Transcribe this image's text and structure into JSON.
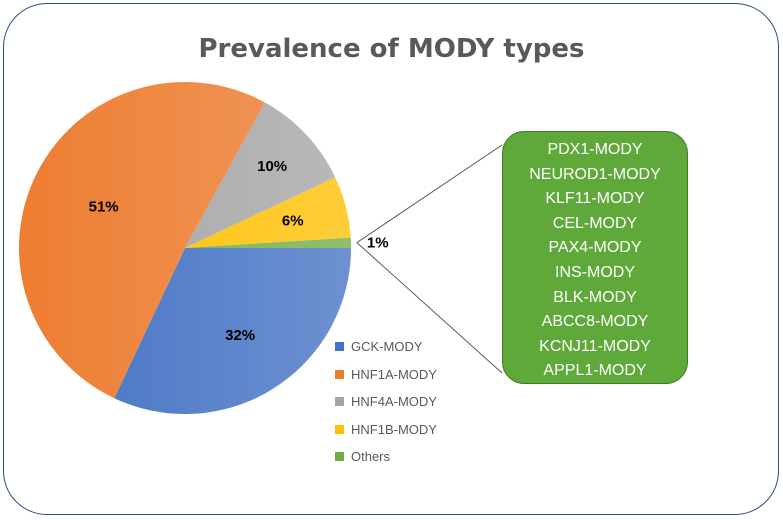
{
  "colors": {
    "GCK-MODY": "#4472c4",
    "HNF1A-MODY": "#ed7d31",
    "HNF4A-MODY": "#a5a5a5",
    "HNF1B-MODY": "#ffc000",
    "Others": "#70ad47"
  },
  "chart_data": {
    "type": "pie",
    "title": "Prevalence of MODY types",
    "slices": [
      {
        "name": "GCK-MODY",
        "value": 32,
        "label": "32%"
      },
      {
        "name": "HNF1A-MODY",
        "value": 51,
        "label": "51%"
      },
      {
        "name": "HNF4A-MODY",
        "value": 10,
        "label": "10%"
      },
      {
        "name": "HNF1B-MODY",
        "value": 6,
        "label": "6%"
      },
      {
        "name": "Others",
        "value": 1,
        "label": "1%"
      }
    ],
    "legend": {
      "placement": "bottom-right",
      "entries": [
        "GCK-MODY",
        "HNF1A-MODY",
        "HNF4A-MODY",
        "HNF1B-MODY",
        "Others"
      ]
    },
    "others_breakdown": [
      "PDX1-MODY",
      "NEUROD1-MODY",
      "KLF11-MODY",
      "CEL-MODY",
      "PAX4-MODY",
      "INS-MODY",
      "BLK-MODY",
      "ABCC8-MODY",
      "KCNJ11-MODY",
      "APPL1-MODY"
    ]
  }
}
